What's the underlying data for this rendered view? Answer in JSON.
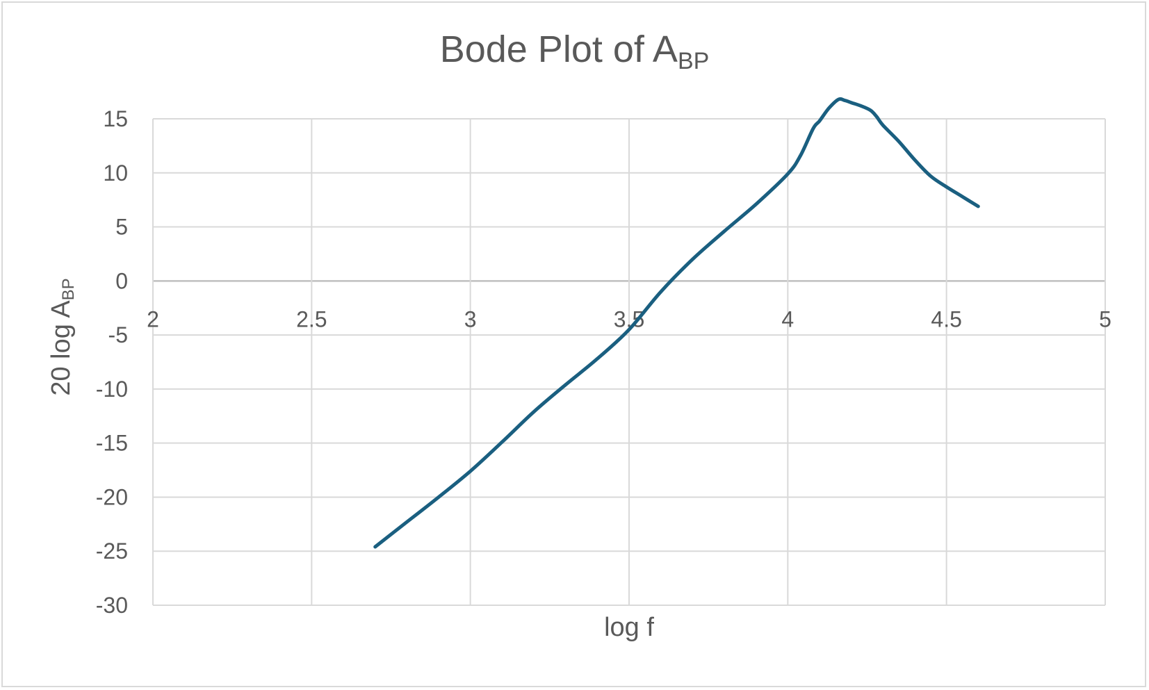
{
  "chart_data": {
    "type": "line",
    "title": "Bode Plot of A",
    "title_subscript": "BP",
    "xlabel": "log f",
    "ylabel": "20 log A",
    "ylabel_subscript": "BP",
    "xlim": [
      2,
      5
    ],
    "ylim": [
      -30,
      15
    ],
    "xticks": [
      2,
      2.5,
      3,
      3.5,
      4,
      4.5,
      5
    ],
    "yticks": [
      15,
      10,
      5,
      0,
      -5,
      -10,
      -15,
      -20,
      -25,
      -30
    ],
    "grid": true,
    "legend": "none",
    "line_color": "#1a5f80",
    "series": [
      {
        "x": [
          2.7,
          2.8,
          2.9,
          3.0,
          3.1,
          3.2,
          3.3,
          3.4,
          3.5,
          3.6,
          3.7,
          3.8,
          3.9,
          4.0,
          4.04,
          4.08,
          4.1,
          4.13,
          4.16,
          4.18,
          4.2,
          4.23,
          4.26,
          4.28,
          4.3,
          4.35,
          4.4,
          4.45,
          4.5,
          4.55,
          4.6
        ],
        "y": [
          -24.6,
          -22.3,
          -20.0,
          -17.6,
          -14.9,
          -12.1,
          -9.6,
          -7.2,
          -4.5,
          -1.0,
          2.0,
          4.6,
          7.1,
          9.9,
          11.6,
          14.1,
          14.8,
          16.0,
          16.8,
          16.7,
          16.5,
          16.2,
          15.8,
          15.2,
          14.4,
          12.9,
          11.2,
          9.7,
          8.7,
          7.8,
          6.9
        ]
      }
    ]
  }
}
